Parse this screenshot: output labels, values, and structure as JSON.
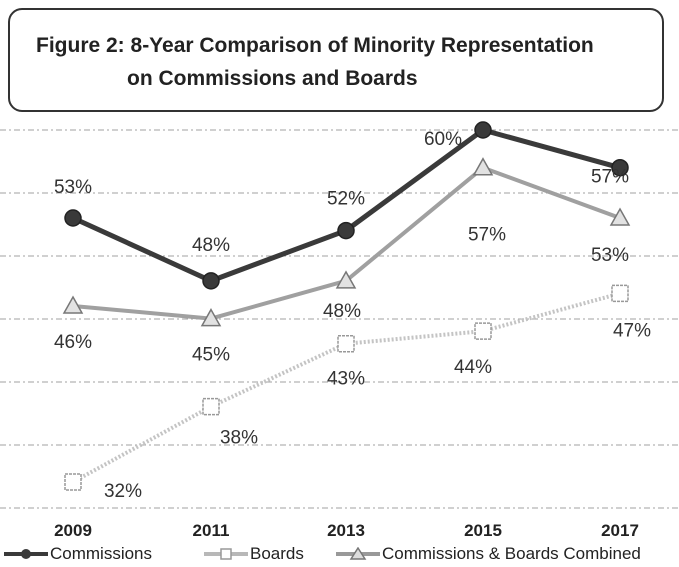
{
  "title": {
    "line1": "Figure 2: 8-Year Comparison of Minority Representation",
    "line2": "on Commissions and Boards"
  },
  "chart_data": {
    "type": "line",
    "title": "Figure 2: 8-Year Comparison of Minority Representation on Commissions and Boards",
    "categories": [
      "2009",
      "2011",
      "2013",
      "2015",
      "2017"
    ],
    "series": [
      {
        "name": "Commissions",
        "values": [
          53,
          48,
          52,
          60,
          57
        ],
        "labels": [
          "53%",
          "48%",
          "52%",
          "60%",
          "57%"
        ],
        "marker": "circle",
        "color": "#3a3a3a"
      },
      {
        "name": "Boards",
        "values": [
          32,
          38,
          43,
          44,
          47
        ],
        "labels": [
          "32%",
          "38%",
          "43%",
          "44%",
          "47%"
        ],
        "marker": "square",
        "color": "#b8b8b8"
      },
      {
        "name": "Commissions & Boards Combined",
        "values": [
          46,
          45,
          48,
          57,
          53
        ],
        "labels": [
          "46%",
          "45%",
          "48%",
          "57%",
          "53%"
        ],
        "marker": "triangle",
        "color": "#999999"
      }
    ],
    "ylim": [
      30,
      62
    ],
    "grid": true,
    "legend_position": "bottom"
  }
}
